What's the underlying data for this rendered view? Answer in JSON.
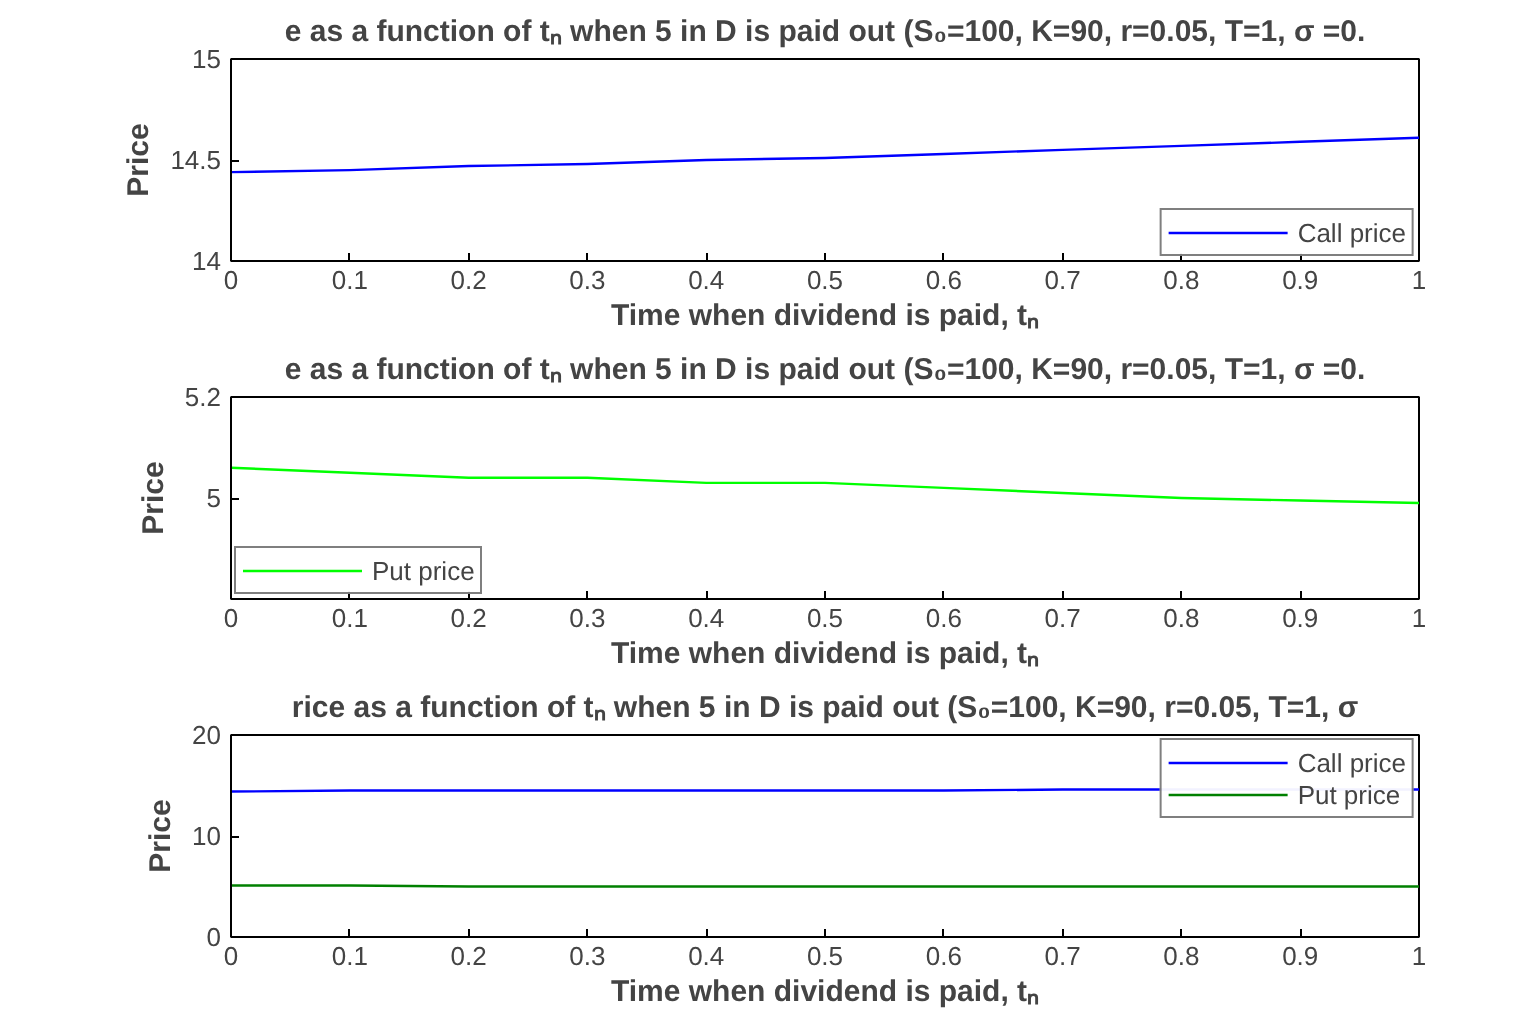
{
  "chart_data": [
    {
      "type": "line",
      "title": "e as a function of tₙ when 5 in D is paid out (S₀=100, K=90, r=0.05, T=1, σ =0.",
      "xlabel": "Time when dividend is paid, tₙ",
      "ylabel": "Price",
      "x": [
        0,
        0.1,
        0.2,
        0.3,
        0.4,
        0.5,
        0.6,
        0.7,
        0.8,
        0.9,
        1
      ],
      "xlim": [
        0,
        1
      ],
      "xticks": [
        0,
        0.1,
        0.2,
        0.3,
        0.4,
        0.5,
        0.6,
        0.7,
        0.8,
        0.9,
        1
      ],
      "ylim": [
        14,
        15
      ],
      "yticks": [
        14,
        14.5,
        15
      ],
      "legend": "bottom right",
      "series": [
        {
          "name": "Call price",
          "color": "#0000ff",
          "values": [
            14.44,
            14.45,
            14.47,
            14.48,
            14.5,
            14.51,
            14.53,
            14.55,
            14.57,
            14.59,
            14.61
          ]
        }
      ]
    },
    {
      "type": "line",
      "title": "e as a function of tₙ when 5 in D is paid out (S₀=100, K=90, r=0.05, T=1, σ =0.",
      "xlabel": "Time when dividend is paid, tₙ",
      "ylabel": "Price",
      "x": [
        0,
        0.1,
        0.2,
        0.3,
        0.4,
        0.5,
        0.6,
        0.7,
        0.8,
        0.9,
        1
      ],
      "xlim": [
        0,
        1
      ],
      "xticks": [
        0,
        0.1,
        0.2,
        0.3,
        0.4,
        0.5,
        0.6,
        0.7,
        0.8,
        0.9,
        1
      ],
      "ylim": [
        4.8,
        5.2
      ],
      "yticks": [
        5,
        5.2
      ],
      "legend": "bottom left",
      "series": [
        {
          "name": "Put price",
          "color": "#00ff00",
          "values": [
            5.06,
            5.05,
            5.04,
            5.04,
            5.03,
            5.03,
            5.02,
            5.01,
            5.0,
            4.995,
            4.99
          ]
        }
      ]
    },
    {
      "type": "line",
      "title": "rice as a function of tₙ when 5 in D is paid out (S₀=100, K=90, r=0.05, T=1, σ",
      "xlabel": "Time when dividend is paid, tₙ",
      "ylabel": "Price",
      "x": [
        0,
        0.1,
        0.2,
        0.3,
        0.4,
        0.5,
        0.6,
        0.7,
        1
      ],
      "xlim": [
        0,
        1
      ],
      "xticks": [
        0,
        0.1,
        0.2,
        0.3,
        0.4,
        0.5,
        0.6,
        0.7,
        0.8,
        0.9,
        1
      ],
      "ylim": [
        0,
        20
      ],
      "yticks": [
        0,
        10,
        20
      ],
      "legend": "top right",
      "series": [
        {
          "name": "Call price",
          "color": "#0000ff",
          "values": [
            14.4,
            14.5,
            14.5,
            14.5,
            14.5,
            14.5,
            14.5,
            14.6,
            14.6
          ]
        },
        {
          "name": "Put price",
          "color": "#008000",
          "values": [
            5.1,
            5.1,
            5.0,
            5.0,
            5.0,
            5.0,
            5.0,
            5.0,
            5.0
          ]
        }
      ]
    }
  ]
}
